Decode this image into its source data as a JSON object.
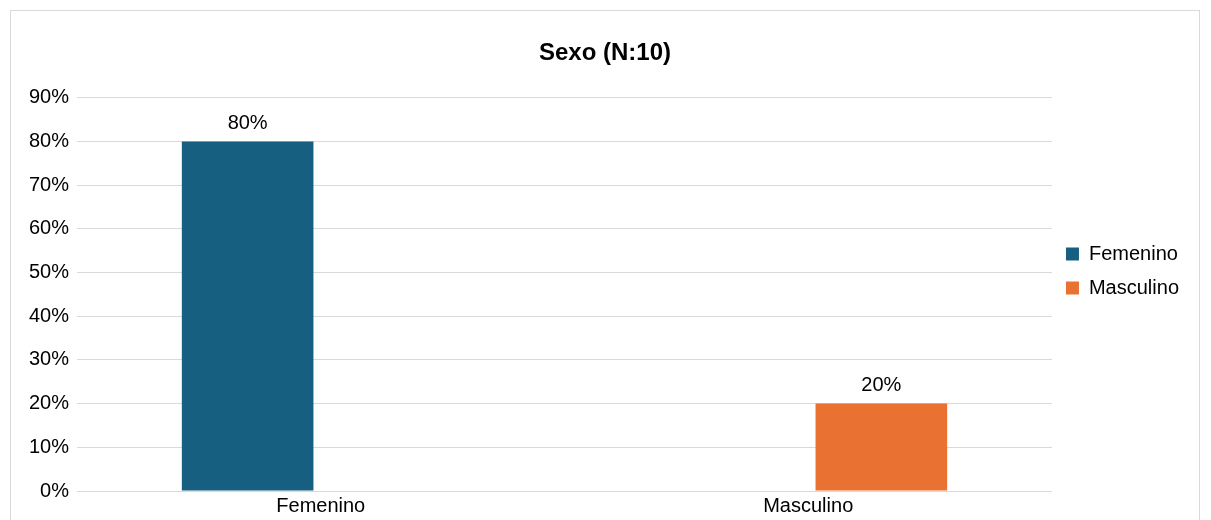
{
  "chart_data": {
    "type": "bar",
    "title": "Sexo (N:10)",
    "categories": [
      "Femenino",
      "Masculino"
    ],
    "series": [
      {
        "name": "Femenino",
        "color": "#175f80",
        "values": [
          80,
          null
        ],
        "value_labels": [
          "80%",
          null
        ]
      },
      {
        "name": "Masculino",
        "color": "#e97132",
        "values": [
          null,
          20
        ],
        "value_labels": [
          null,
          "20%"
        ]
      }
    ],
    "ylim": [
      0,
      90
    ],
    "yticks": [
      {
        "value": 0,
        "label": "0%"
      },
      {
        "value": 10,
        "label": "10%"
      },
      {
        "value": 20,
        "label": "20%"
      },
      {
        "value": 30,
        "label": "30%"
      },
      {
        "value": 40,
        "label": "40%"
      },
      {
        "value": 50,
        "label": "50%"
      },
      {
        "value": 60,
        "label": "60%"
      },
      {
        "value": 70,
        "label": "70%"
      },
      {
        "value": 80,
        "label": "80%"
      },
      {
        "value": 90,
        "label": "90%"
      }
    ],
    "grid": "y",
    "legend": "right"
  }
}
